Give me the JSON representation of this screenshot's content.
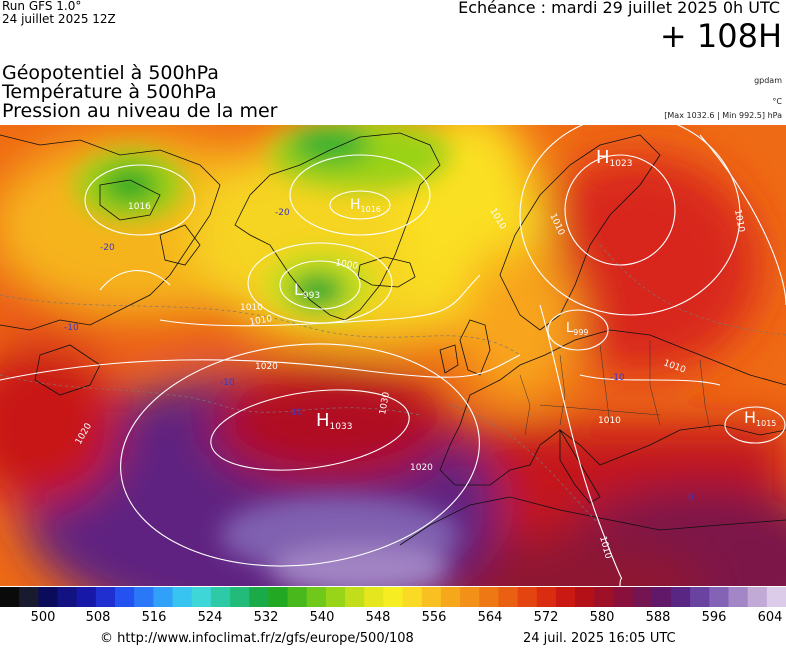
{
  "header": {
    "run_model": "Run GFS 1.0°",
    "run_date": "24 juillet 2025 12Z",
    "echeance": "Echéance : mardi 29 juillet 2025 0h UTC",
    "lead_time": "+ 108H"
  },
  "fields": [
    "Géopotentiel à 500hPa",
    "Température à 500hPa",
    "Pression au niveau de la mer"
  ],
  "units": {
    "geopotential": "gpdam",
    "temperature": "°C",
    "pressure_minmax": "[Max 1032.6 | Min 992.5] hPa"
  },
  "pressure_centers": [
    {
      "type": "H",
      "value": "1023"
    },
    {
      "type": "H",
      "value": "1015"
    },
    {
      "type": "H",
      "value": "1033"
    },
    {
      "type": "H",
      "value": "1016"
    },
    {
      "type": "L",
      "value": "993"
    },
    {
      "type": "L",
      "value": "999"
    }
  ],
  "isobar_labels": [
    "1010",
    "1010",
    "1010",
    "1010",
    "1010",
    "1010",
    "1020",
    "1020",
    "1020",
    "1030",
    "1000",
    "1010",
    "1010",
    "1016"
  ],
  "isotherm_labels": [
    "-20",
    "-20",
    "-10",
    "-10",
    "-10",
    "-10",
    "0"
  ],
  "colorbar": {
    "unit": "gpdam",
    "ticks": [
      "500",
      "508",
      "516",
      "524",
      "532",
      "540",
      "548",
      "556",
      "564",
      "572",
      "580",
      "588",
      "596",
      "604"
    ],
    "colors": [
      "#0a0a0a",
      "#1a1a2e",
      "#0b0b5c",
      "#121280",
      "#1818a8",
      "#1f2fd0",
      "#2452f0",
      "#2a78f8",
      "#31a0f8",
      "#37c4f0",
      "#3ed6d6",
      "#2ecaa8",
      "#22bb7a",
      "#1aab48",
      "#22a822",
      "#48b81c",
      "#6fc81a",
      "#98d418",
      "#c2de1a",
      "#e6e61e",
      "#f6ee22",
      "#fada24",
      "#f8c020",
      "#f6a81c",
      "#f29018",
      "#ee7814",
      "#ea6012",
      "#e44410",
      "#da2c10",
      "#ca1812",
      "#b41018",
      "#9e1028",
      "#88103a",
      "#741450",
      "#621868",
      "#5a2684",
      "#6a42a0",
      "#8462b6",
      "#a286c6",
      "#c2aad6",
      "#dcccea"
    ]
  },
  "footer": {
    "url": "© http://www.infoclimat.fr/z/gfs/europe/500/108",
    "timestamp": "24 juil. 2025 16:05 UTC"
  }
}
